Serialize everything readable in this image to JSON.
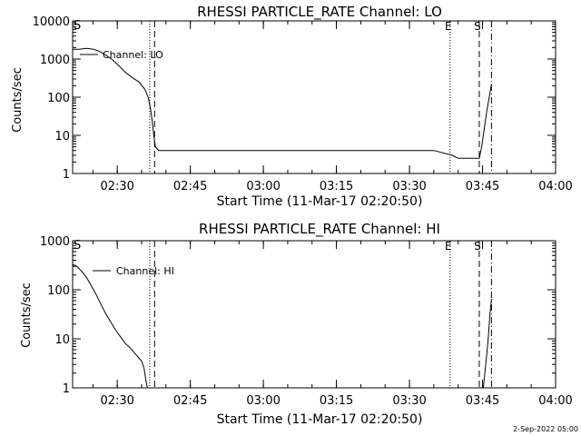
{
  "footer_date": "2-Sep-2022 05:00",
  "colors": {
    "background": "#ffffff",
    "foreground": "#000000"
  },
  "chart_data": [
    {
      "type": "line",
      "title": "RHESSI PARTICLE_RATE Channel: LO",
      "xlabel": "Start Time (11-Mar-17 02:20:50)",
      "ylabel": "Counts/sec",
      "y_scale": "log",
      "ylim": [
        1,
        10000
      ],
      "y_ticks": [
        "1",
        "10",
        "100",
        "1000",
        "10000"
      ],
      "x_range_minutes": [
        "02:20:50",
        "04:00:00"
      ],
      "x_ticks": [
        "02:30",
        "02:45",
        "03:00",
        "03:15",
        "03:30",
        "03:45",
        "04:00"
      ],
      "legend": {
        "position": "top-left",
        "label": "Channel: LO"
      },
      "markers": [
        {
          "time": "02:36:40",
          "style": "dotted",
          "label": ""
        },
        {
          "time": "02:37:40",
          "style": "dashed",
          "label": ""
        },
        {
          "time": "03:38:20",
          "style": "dotted",
          "label": "E"
        },
        {
          "time": "03:44:20",
          "style": "dashed",
          "label": "S"
        },
        {
          "time": "03:46:50",
          "style": "dashdot",
          "label": ""
        }
      ],
      "edge_label": "S",
      "series": [
        {
          "name": "Channel: LO",
          "x": [
            "02:20:50",
            "02:22:10",
            "02:23:40",
            "02:25:10",
            "02:26:20",
            "02:27:30",
            "02:28:50",
            "02:30:10",
            "02:31:40",
            "02:33:10",
            "02:34:30",
            "02:35:40",
            "02:36:20",
            "02:36:50",
            "02:37:10",
            "02:37:30",
            "02:37:50",
            "02:38:30",
            "02:45:00",
            "02:55:00",
            "03:05:00",
            "03:15:00",
            "03:25:00",
            "03:30:00",
            "03:35:00",
            "03:38:50",
            "03:40:00",
            "03:42:00",
            "03:44:20",
            "03:44:50",
            "03:45:50",
            "03:46:50"
          ],
          "values": [
            1800,
            1800,
            1900,
            1800,
            1600,
            1300,
            1000,
            700,
            450,
            320,
            250,
            160,
            100,
            50,
            25,
            10,
            5,
            4,
            4,
            4,
            4,
            4,
            4,
            4,
            4,
            3,
            2.5,
            2.5,
            2.5,
            5,
            40,
            220
          ]
        }
      ]
    },
    {
      "type": "line",
      "title": "RHESSI PARTICLE_RATE Channel: HI",
      "xlabel": "Start Time (11-Mar-17 02:20:50)",
      "ylabel": "Counts/sec",
      "y_scale": "log",
      "ylim": [
        1,
        1000
      ],
      "y_ticks": [
        "1",
        "10",
        "100",
        "1000"
      ],
      "x_range_minutes": [
        "02:20:50",
        "04:00:00"
      ],
      "x_ticks": [
        "02:30",
        "02:45",
        "03:00",
        "03:15",
        "03:30",
        "03:45",
        "04:00"
      ],
      "legend": {
        "position": "top-left",
        "label": "Channel: HI"
      },
      "markers": [
        {
          "time": "02:36:40",
          "style": "dotted",
          "label": ""
        },
        {
          "time": "02:37:40",
          "style": "dashed",
          "label": ""
        },
        {
          "time": "03:38:20",
          "style": "dotted",
          "label": "E"
        },
        {
          "time": "03:44:20",
          "style": "dashed",
          "label": "S"
        },
        {
          "time": "03:46:50",
          "style": "dashdot",
          "label": ""
        }
      ],
      "edge_label": "S",
      "series": [
        {
          "name": "Channel: HI",
          "x": [
            "02:20:50",
            "02:21:40",
            "02:22:40",
            "02:23:40",
            "02:24:40",
            "02:25:40",
            "02:26:40",
            "02:27:40",
            "02:28:40",
            "02:29:40",
            "02:30:40",
            "02:31:40",
            "02:32:40",
            "02:33:40",
            "02:34:30",
            "02:35:00",
            "02:35:30",
            "02:35:50",
            "02:36:10"
          ],
          "values": [
            330,
            300,
            240,
            180,
            120,
            80,
            50,
            32,
            22,
            15,
            11,
            8,
            6.5,
            5,
            4,
            3.5,
            2.5,
            1.5,
            1
          ]
        },
        {
          "name": "",
          "x": [
            "03:45:10",
            "03:45:40",
            "03:46:10",
            "03:46:30",
            "03:46:50"
          ],
          "values": [
            1,
            3,
            10,
            30,
            65
          ]
        }
      ]
    }
  ]
}
